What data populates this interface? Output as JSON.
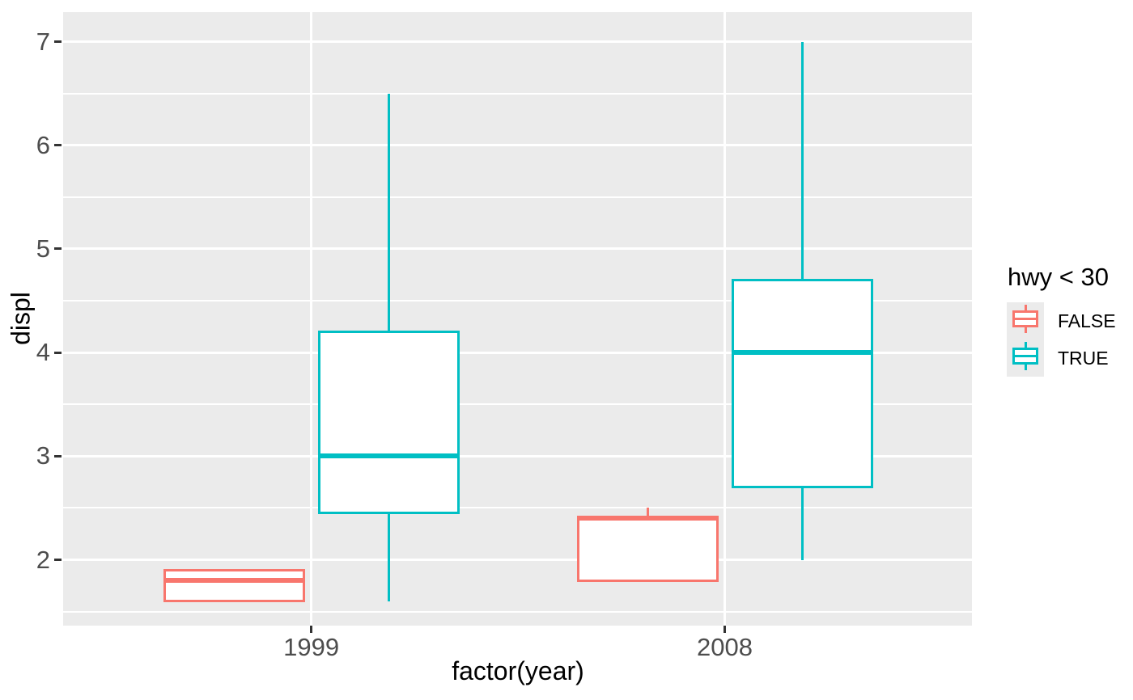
{
  "chart_data": {
    "type": "boxplot",
    "title": "",
    "xlabel": "factor(year)",
    "ylabel": "displ",
    "categories": [
      "1999",
      "2008"
    ],
    "y_ticks": [
      2,
      3,
      4,
      5,
      6,
      7
    ],
    "ylim": [
      1.365,
      7.285
    ],
    "grid": {
      "show": true,
      "major_every": 1,
      "minor_every": 0.5,
      "vertical_major_at_categories": true
    },
    "series": [
      {
        "name": "FALSE",
        "color": "#F8766D",
        "boxes": [
          {
            "category": "1999",
            "whisker_low": 1.6,
            "q1": 1.6,
            "median": 1.8,
            "q3": 1.9,
            "whisker_high": 1.9
          },
          {
            "category": "2008",
            "whisker_low": 1.8,
            "q1": 1.8,
            "median": 2.4,
            "q3": 2.4,
            "whisker_high": 2.5
          }
        ]
      },
      {
        "name": "TRUE",
        "color": "#00BFC4",
        "boxes": [
          {
            "category": "1999",
            "whisker_low": 1.6,
            "q1": 2.45,
            "median": 3.0,
            "q3": 4.2,
            "whisker_high": 6.5
          },
          {
            "category": "2008",
            "whisker_low": 2.0,
            "q1": 2.7,
            "median": 4.0,
            "q3": 4.7,
            "whisker_high": 7.0
          }
        ]
      }
    ],
    "legend": {
      "title": "hwy < 30",
      "position": "right",
      "entries": [
        {
          "label": "FALSE",
          "color": "#F8766D"
        },
        {
          "label": "TRUE",
          "color": "#00BFC4"
        }
      ]
    },
    "colors": {
      "panel_background": "#EBEBEB",
      "gridline": "#FFFFFF",
      "tick_mark": "#333333",
      "tick_label": "#4D4D4D",
      "axis_title": "#000000",
      "legend_text": "#000000",
      "legend_key_background": "#EBEBEB",
      "box_fill": "#FFFFFF"
    }
  }
}
